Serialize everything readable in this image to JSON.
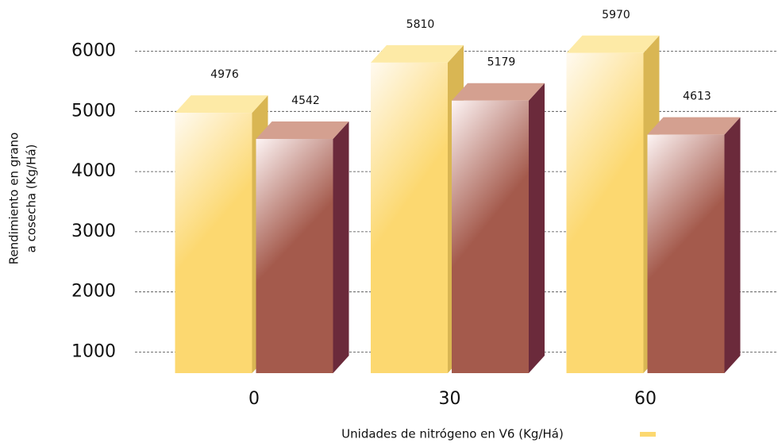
{
  "chart_data": {
    "type": "bar3d",
    "categories": [
      "0",
      "30",
      "60"
    ],
    "series": [
      {
        "color": "#fcd870",
        "values": [
          4976,
          5810,
          5970
        ]
      },
      {
        "color": "#a45a4c",
        "values": [
          4542,
          5179,
          4613
        ]
      }
    ],
    "ylabel": [
      "Rendimiento en grano",
      "a cosecha (Kg/Há)"
    ],
    "xlabel": "Unidades de nitrógeno en V6 (Kg/Há)",
    "ylim": [
      650,
      6450
    ],
    "yticks": [
      1000,
      2000,
      3000,
      4000,
      5000,
      6000
    ],
    "grid": true
  }
}
